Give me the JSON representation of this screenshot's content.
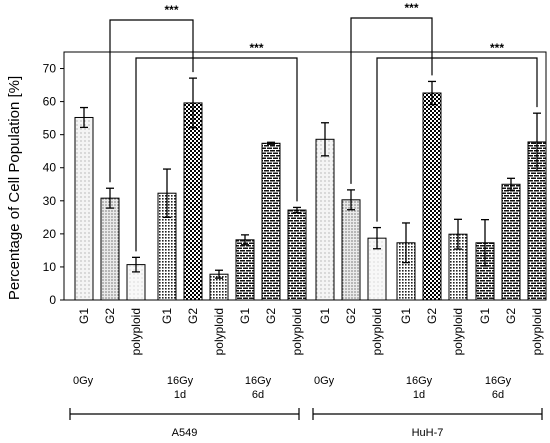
{
  "chart_data": {
    "type": "bar",
    "ylabel": "Percentage of Cell Population [%]",
    "ylim": [
      0,
      75
    ],
    "yticks": [
      0,
      10,
      20,
      30,
      40,
      50,
      60,
      70
    ],
    "grid": false,
    "categories": [
      "G1",
      "G2",
      "polyploid"
    ],
    "conditions": [
      {
        "label_line1": "0Gy",
        "label_line2": ""
      },
      {
        "label_line1": "16Gy",
        "label_line2": "1d"
      },
      {
        "label_line1": "16Gy",
        "label_line2": "6d"
      }
    ],
    "cell_lines": [
      {
        "name": "A549",
        "groups": [
          {
            "values": [
              55.2,
              30.8,
              10.7
            ],
            "errors": [
              3.0,
              3.0,
              2.2
            ]
          },
          {
            "values": [
              32.3,
              59.6,
              7.8
            ],
            "errors": [
              7.3,
              7.5,
              1.2
            ]
          },
          {
            "values": [
              18.2,
              47.4,
              27.2
            ],
            "errors": [
              1.5,
              0.3,
              0.8
            ]
          }
        ]
      },
      {
        "name": "HuH-7",
        "groups": [
          {
            "values": [
              48.6,
              30.3,
              18.7
            ],
            "errors": [
              5.0,
              3.0,
              3.2
            ]
          },
          {
            "values": [
              17.3,
              62.6,
              19.9
            ],
            "errors": [
              6.0,
              3.5,
              4.5
            ]
          },
          {
            "values": [
              17.3,
              35.0,
              47.8
            ],
            "errors": [
              7.0,
              1.8,
              8.7
            ]
          }
        ]
      }
    ],
    "annotations": [
      {
        "text": "***",
        "from": "A549 0Gy G2",
        "to": "A549 16Gy 1d G2"
      },
      {
        "text": "***",
        "from": "A549 0Gy polyploid",
        "to": "A549 16Gy 6d polyploid"
      },
      {
        "text": "***",
        "from": "HuH-7 0Gy G2",
        "to": "HuH-7 16Gy 1d G2"
      },
      {
        "text": "***",
        "from": "HuH-7 0Gy polyploid",
        "to": "HuH-7 16Gy 6d polyploid"
      }
    ]
  }
}
